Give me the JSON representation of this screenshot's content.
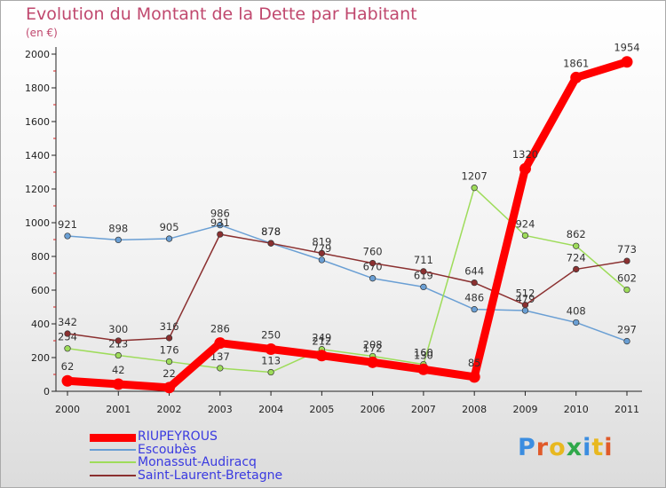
{
  "header": {
    "title": "Evolution du Montant de la Dette par Habitant",
    "unit": "(en €)"
  },
  "logo": {
    "text": "Proxiti",
    "letter_colors": [
      "#3b8de0",
      "#e05a2a",
      "#e8b820",
      "#2fa84a",
      "#3b8de0",
      "#e8b820",
      "#e05a2a"
    ]
  },
  "chart_data": {
    "type": "line",
    "x": [
      "2000",
      "2001",
      "2002",
      "2003",
      "2004",
      "2005",
      "2006",
      "2007",
      "2008",
      "2009",
      "2010",
      "2011"
    ],
    "ylim": [
      0,
      2000
    ],
    "yticks": [
      "0",
      "200",
      "400",
      "600",
      "800",
      "1000",
      "1200",
      "1400",
      "1600",
      "1800",
      "2000"
    ],
    "grid": false,
    "legend_position": "bottom-left",
    "series": [
      {
        "name": "Escoubès",
        "color": "#6a9fd4",
        "values": [
          921,
          898,
          905,
          986,
          878,
          779,
          670,
          619,
          486,
          479,
          408,
          297
        ],
        "labels": [
          "921",
          "898",
          "905",
          "986",
          "878",
          "779",
          "670",
          "619",
          "486",
          "479",
          "408",
          "297"
        ]
      },
      {
        "name": "Monassut-Audiracq",
        "color": "#9edc5a",
        "values": [
          254,
          213,
          176,
          137,
          113,
          249,
          208,
          160,
          1207,
          924,
          862,
          602
        ],
        "labels": [
          "254",
          "213",
          "176",
          "137",
          "113",
          "249",
          "208",
          "160",
          "1207",
          "924",
          "862",
          "602"
        ]
      },
      {
        "name": "Saint-Laurent-Bretagne",
        "color": "#8b3030",
        "values": [
          342,
          300,
          316,
          931,
          878,
          819,
          760,
          711,
          644,
          512,
          724,
          773
        ],
        "labels": [
          "342",
          "300",
          "316",
          "931",
          "878",
          "819",
          "760",
          "711",
          "644",
          "512",
          "724",
          "773"
        ]
      },
      {
        "name": "RIUPEYROUS",
        "color": "#ff0000",
        "values": [
          62,
          42,
          22,
          286,
          250,
          212,
          172,
          130,
          85,
          1320,
          1861,
          1954
        ],
        "labels": [
          "62",
          "42",
          "22",
          "286",
          "250",
          "212",
          "172",
          "130",
          "85",
          "1320",
          "1861",
          "1954"
        ]
      }
    ],
    "legend_order": [
      "RIUPEYROUS",
      "Escoubès",
      "Monassut-Audiracq",
      "Saint-Laurent-Bretagne"
    ]
  }
}
